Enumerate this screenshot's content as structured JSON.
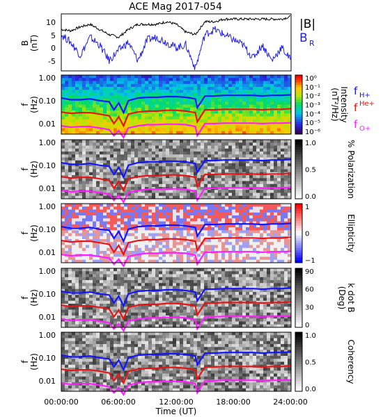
{
  "title": "ACE Mag 2017-054",
  "xlabel": "Time (UT)",
  "x_ticks": [
    "00:00:00",
    "06:00:00",
    "12:00:00",
    "18:00:00",
    "24:00:00"
  ],
  "freq_ticks": [
    "1.00",
    "0.10",
    "0.01"
  ],
  "freq_label": [
    "f",
    "(Hz)"
  ],
  "colors": {
    "Btotal": "#000000",
    "BR": "#1e1ee6",
    "fH": "#1414ff",
    "fHe": "#e61414",
    "fO": "#ff1eff"
  },
  "chart_data": [
    {
      "type": "line",
      "panel": "magnetic-field",
      "ylabel": [
        "B",
        "(nT)"
      ],
      "ylim": [
        -8,
        14
      ],
      "y_ticks": [
        "10",
        "5",
        "0",
        "-5"
      ],
      "x_unit": "hours UT",
      "xlim": [
        0,
        24
      ],
      "series": [
        {
          "name": "|B|",
          "x": [
            0,
            1,
            2,
            3,
            4,
            5,
            6,
            7,
            8,
            9,
            10,
            11,
            12,
            13,
            14,
            15,
            16,
            17,
            18,
            19,
            20,
            21,
            22,
            23,
            24
          ],
          "values": [
            8,
            7.5,
            9,
            10,
            8,
            6,
            5,
            8,
            10,
            10,
            10,
            11,
            10,
            7,
            6,
            11,
            11,
            12,
            12,
            12,
            12,
            12,
            12,
            12,
            13
          ]
        },
        {
          "name": "B_R",
          "x": [
            0,
            1,
            2,
            3,
            4,
            5,
            6,
            7,
            8,
            9,
            10,
            11,
            12,
            13,
            14,
            15,
            16,
            17,
            18,
            19,
            20,
            21,
            22,
            23,
            24
          ],
          "values": [
            6,
            3,
            -2,
            5,
            2,
            -4,
            0,
            3,
            -4,
            4,
            5,
            3,
            1,
            2,
            -7,
            6,
            8,
            6,
            4,
            2,
            -3,
            2,
            -4,
            1,
            -4
          ]
        }
      ],
      "legend": [
        "|B|",
        "B",
        "R"
      ]
    },
    {
      "type": "heatmap",
      "panel": "intensity",
      "colorbar_label": [
        "Intensity",
        "(nT²/Hz)"
      ],
      "colorbar_ticks": [
        "10⁰",
        "10⁻¹",
        "10⁻²",
        "10⁻³",
        "10⁻⁴",
        "10⁻⁵",
        "10⁻⁶"
      ],
      "legend": [
        [
          "f",
          "H+"
        ],
        [
          "f",
          "He+"
        ],
        [
          "f",
          "O+"
        ]
      ]
    },
    {
      "type": "heatmap",
      "panel": "polarization",
      "colorbar_label": "% Polarization",
      "colorbar_ticks": [
        "1.0",
        "0.5",
        "0.0"
      ]
    },
    {
      "type": "heatmap",
      "panel": "ellipticity",
      "colorbar_label": "Ellipticity",
      "colorbar_ticks": [
        "1",
        "0",
        "−1"
      ]
    },
    {
      "type": "heatmap",
      "panel": "k-dot-b",
      "colorbar_label": [
        "k dot B",
        "(Deg)"
      ],
      "colorbar_ticks": [
        "90",
        "60",
        "30",
        "0"
      ]
    },
    {
      "type": "heatmap",
      "panel": "coherency",
      "colorbar_label": "Coherency",
      "colorbar_ticks": [
        "1.0",
        "0.5",
        "0.0"
      ]
    }
  ],
  "gyro_lines": {
    "x": [
      0,
      1,
      2,
      3,
      4,
      5,
      5.5,
      6,
      6.5,
      7,
      8,
      9,
      10,
      11,
      12,
      13,
      14,
      14.2,
      15,
      16,
      17,
      18,
      19,
      20,
      21,
      22,
      23,
      24
    ],
    "fH": [
      0.13,
      0.11,
      0.11,
      0.12,
      0.1,
      0.09,
      0.04,
      0.08,
      0.03,
      0.1,
      0.13,
      0.14,
      0.14,
      0.15,
      0.15,
      0.14,
      0.12,
      0.05,
      0.16,
      0.16,
      0.17,
      0.17,
      0.17,
      0.17,
      0.16,
      0.17,
      0.17,
      0.18
    ],
    "fHe": [
      0.032,
      0.028,
      0.03,
      0.03,
      0.026,
      0.022,
      0.01,
      0.02,
      0.008,
      0.026,
      0.032,
      0.035,
      0.035,
      0.038,
      0.038,
      0.035,
      0.03,
      0.012,
      0.04,
      0.04,
      0.042,
      0.042,
      0.042,
      0.042,
      0.04,
      0.042,
      0.042,
      0.045
    ],
    "fO": [
      0.008,
      0.007,
      0.0075,
      0.0075,
      0.0065,
      0.0055,
      0.003,
      0.005,
      0.0025,
      0.0065,
      0.008,
      0.009,
      0.009,
      0.0095,
      0.0095,
      0.009,
      0.0075,
      0.003,
      0.01,
      0.01,
      0.0105,
      0.0105,
      0.0105,
      0.0105,
      0.01,
      0.0105,
      0.0105,
      0.011
    ]
  }
}
